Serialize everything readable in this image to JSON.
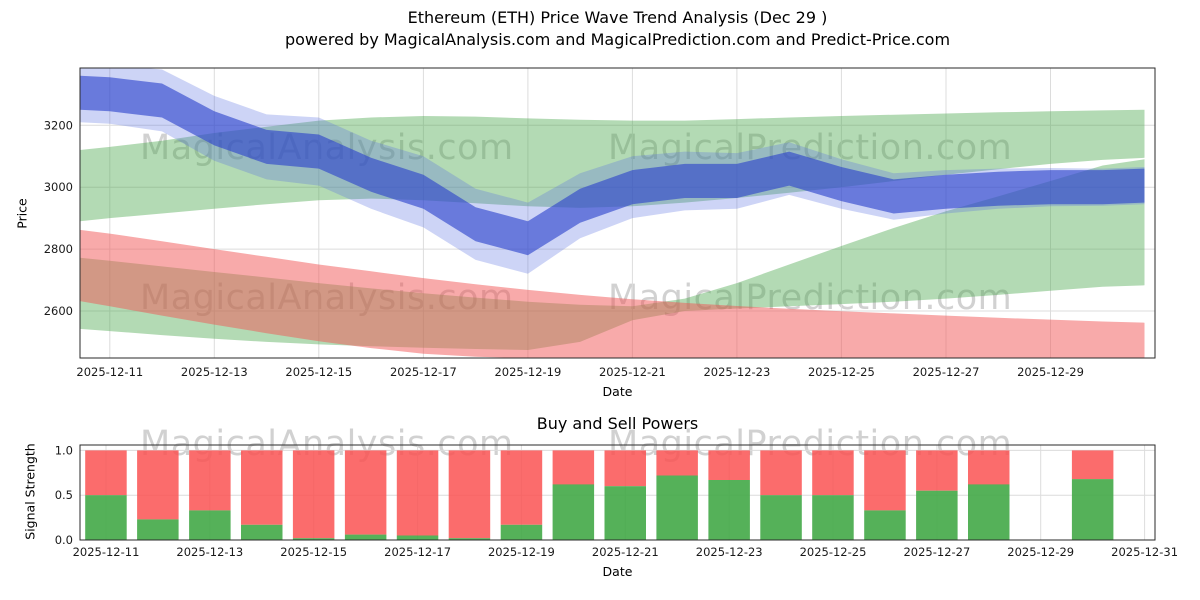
{
  "title": {
    "line1": "Ethereum (ETH) Price Wave Trend Analysis (Dec 29 )",
    "line2": "powered by MagicalAnalysis.com and MagicalPrediction.com and Predict-Price.com"
  },
  "watermarks": [
    "MagicalAnalysis.com",
    "MagicalPrediction.com"
  ],
  "chart_data": [
    {
      "type": "area",
      "title": "Ethereum (ETH) Price Wave Trend Analysis (Dec 29 )",
      "xlabel": "Date",
      "ylabel": "Price",
      "x_domain": [
        10.43,
        31.0
      ],
      "ylim": [
        2448,
        3385
      ],
      "yticks": [
        2600,
        2800,
        3000,
        3200
      ],
      "xticks": [
        {
          "day": 11,
          "label": "2025-12-11"
        },
        {
          "day": 13,
          "label": "2025-12-13"
        },
        {
          "day": 15,
          "label": "2025-12-15"
        },
        {
          "day": 17,
          "label": "2025-12-17"
        },
        {
          "day": 19,
          "label": "2025-12-19"
        },
        {
          "day": 21,
          "label": "2025-12-21"
        },
        {
          "day": 23,
          "label": "2025-12-23"
        },
        {
          "day": 25,
          "label": "2025-12-25"
        },
        {
          "day": 27,
          "label": "2025-12-27"
        },
        {
          "day": 29,
          "label": "2025-12-29"
        }
      ],
      "x_days": [
        10.43,
        11,
        12,
        13,
        14,
        15,
        16,
        17,
        18,
        19,
        20,
        21,
        22,
        23,
        24,
        25,
        26,
        27,
        28,
        29,
        30,
        30.8
      ],
      "bands": [
        {
          "name": "upper-green-band",
          "color": "#49a84c",
          "opacity": 0.42,
          "upper": [
            3120,
            3130,
            3150,
            3175,
            3195,
            3215,
            3225,
            3230,
            3228,
            3222,
            3218,
            3215,
            3215,
            3220,
            3225,
            3230,
            3234,
            3238,
            3242,
            3245,
            3248,
            3250
          ],
          "lower": [
            2890,
            2900,
            2915,
            2930,
            2945,
            2958,
            2963,
            2958,
            2948,
            2938,
            2933,
            2938,
            2950,
            2965,
            2982,
            3000,
            3020,
            3040,
            3058,
            3075,
            3088,
            3095
          ]
        },
        {
          "name": "lower-green-band",
          "color": "#49a84c",
          "opacity": 0.42,
          "upper": [
            2772,
            2762,
            2744,
            2726,
            2708,
            2690,
            2673,
            2657,
            2643,
            2630,
            2620,
            2615,
            2640,
            2690,
            2750,
            2810,
            2868,
            2922,
            2970,
            3020,
            3070,
            3090
          ],
          "lower": [
            2542,
            2535,
            2522,
            2510,
            2500,
            2492,
            2486,
            2481,
            2477,
            2474,
            2500,
            2570,
            2600,
            2608,
            2615,
            2622,
            2630,
            2640,
            2652,
            2665,
            2678,
            2683
          ]
        },
        {
          "name": "red-band",
          "color": "#f25555",
          "opacity": 0.5,
          "upper": [
            2862,
            2850,
            2825,
            2800,
            2775,
            2750,
            2728,
            2706,
            2686,
            2668,
            2652,
            2638,
            2626,
            2616,
            2607,
            2599,
            2592,
            2585,
            2578,
            2572,
            2566,
            2562
          ],
          "lower": [
            2632,
            2615,
            2585,
            2556,
            2528,
            2502,
            2480,
            2462,
            2452,
            2448,
            2446,
            2444,
            2442,
            2442,
            2442,
            2442,
            2442,
            2442,
            2442,
            2442,
            2442,
            2442
          ]
        },
        {
          "name": "outer-blue-band",
          "color": "#5a6fe0",
          "opacity": 0.3,
          "upper": [
            3400,
            3395,
            3380,
            3295,
            3235,
            3225,
            3150,
            3100,
            2995,
            2950,
            3045,
            3100,
            3115,
            3110,
            3145,
            3090,
            3045,
            3055,
            3060,
            3062,
            3060,
            3065
          ],
          "lower": [
            3210,
            3205,
            3180,
            3085,
            3025,
            3005,
            2930,
            2870,
            2765,
            2720,
            2835,
            2900,
            2925,
            2930,
            2975,
            2930,
            2895,
            2915,
            2930,
            2938,
            2940,
            2945
          ]
        },
        {
          "name": "inner-blue-band",
          "color": "#2b42cc",
          "opacity": 0.62,
          "upper": [
            3360,
            3355,
            3335,
            3245,
            3185,
            3170,
            3095,
            3040,
            2935,
            2890,
            2995,
            3055,
            3075,
            3075,
            3115,
            3065,
            3025,
            3040,
            3050,
            3055,
            3055,
            3060
          ],
          "lower": [
            3250,
            3245,
            3225,
            3135,
            3075,
            3060,
            2985,
            2930,
            2825,
            2780,
            2885,
            2945,
            2965,
            2965,
            3005,
            2955,
            2915,
            2930,
            2940,
            2945,
            2945,
            2950
          ]
        }
      ]
    },
    {
      "type": "bar",
      "title": "Buy and Sell Powers",
      "xlabel": "Date",
      "ylabel": "Signal Strength",
      "x_domain": [
        10.5,
        31.2
      ],
      "ylim": [
        0,
        1.06
      ],
      "yticks": [
        {
          "v": 0.0,
          "label": "0.0"
        },
        {
          "v": 0.5,
          "label": "0.5"
        },
        {
          "v": 1.0,
          "label": "1.0"
        }
      ],
      "xticks": [
        {
          "day": 11,
          "label": "2025-12-11"
        },
        {
          "day": 13,
          "label": "2025-12-13"
        },
        {
          "day": 15,
          "label": "2025-12-15"
        },
        {
          "day": 17,
          "label": "2025-12-17"
        },
        {
          "day": 19,
          "label": "2025-12-19"
        },
        {
          "day": 21,
          "label": "2025-12-21"
        },
        {
          "day": 23,
          "label": "2025-12-23"
        },
        {
          "day": 25,
          "label": "2025-12-25"
        },
        {
          "day": 27,
          "label": "2025-12-27"
        },
        {
          "day": 29,
          "label": "2025-12-29"
        },
        {
          "day": 31,
          "label": "2025-12-31"
        }
      ],
      "colors": {
        "buy": "#43a847",
        "sell": "#fa5252"
      },
      "bar_width_days": 0.8,
      "bars": [
        {
          "date": "2025-12-11",
          "day": 11,
          "buy": 0.5,
          "sell": 0.5,
          "total": 1.0
        },
        {
          "date": "2025-12-12",
          "day": 12,
          "buy": 0.23,
          "sell": 0.77,
          "total": 1.0
        },
        {
          "date": "2025-12-13",
          "day": 13,
          "buy": 0.33,
          "sell": 0.67,
          "total": 1.0
        },
        {
          "date": "2025-12-14",
          "day": 14,
          "buy": 0.17,
          "sell": 0.83,
          "total": 1.0
        },
        {
          "date": "2025-12-15",
          "day": 15,
          "buy": 0.02,
          "sell": 0.98,
          "total": 1.0
        },
        {
          "date": "2025-12-16",
          "day": 16,
          "buy": 0.06,
          "sell": 0.94,
          "total": 1.0
        },
        {
          "date": "2025-12-17",
          "day": 17,
          "buy": 0.05,
          "sell": 0.95,
          "total": 1.0
        },
        {
          "date": "2025-12-18",
          "day": 18,
          "buy": 0.02,
          "sell": 0.98,
          "total": 1.0
        },
        {
          "date": "2025-12-19",
          "day": 19,
          "buy": 0.17,
          "sell": 0.83,
          "total": 1.0
        },
        {
          "date": "2025-12-20",
          "day": 20,
          "buy": 0.62,
          "sell": 0.38,
          "total": 1.0
        },
        {
          "date": "2025-12-21",
          "day": 21,
          "buy": 0.6,
          "sell": 0.4,
          "total": 1.0
        },
        {
          "date": "2025-12-22",
          "day": 22,
          "buy": 0.72,
          "sell": 0.28,
          "total": 1.0
        },
        {
          "date": "2025-12-23",
          "day": 23,
          "buy": 0.67,
          "sell": 0.33,
          "total": 1.0
        },
        {
          "date": "2025-12-24",
          "day": 24,
          "buy": 0.5,
          "sell": 0.5,
          "total": 1.0
        },
        {
          "date": "2025-12-25",
          "day": 25,
          "buy": 0.5,
          "sell": 0.5,
          "total": 1.0
        },
        {
          "date": "2025-12-26",
          "day": 26,
          "buy": 0.33,
          "sell": 0.67,
          "total": 1.0
        },
        {
          "date": "2025-12-27",
          "day": 27,
          "buy": 0.55,
          "sell": 0.45,
          "total": 1.0
        },
        {
          "date": "2025-12-28",
          "day": 28,
          "buy": 0.62,
          "sell": 0.38,
          "total": 1.0
        },
        {
          "date": "2025-12-30",
          "day": 30,
          "buy": 0.68,
          "sell": 0.32,
          "total": 1.0
        }
      ]
    }
  ]
}
